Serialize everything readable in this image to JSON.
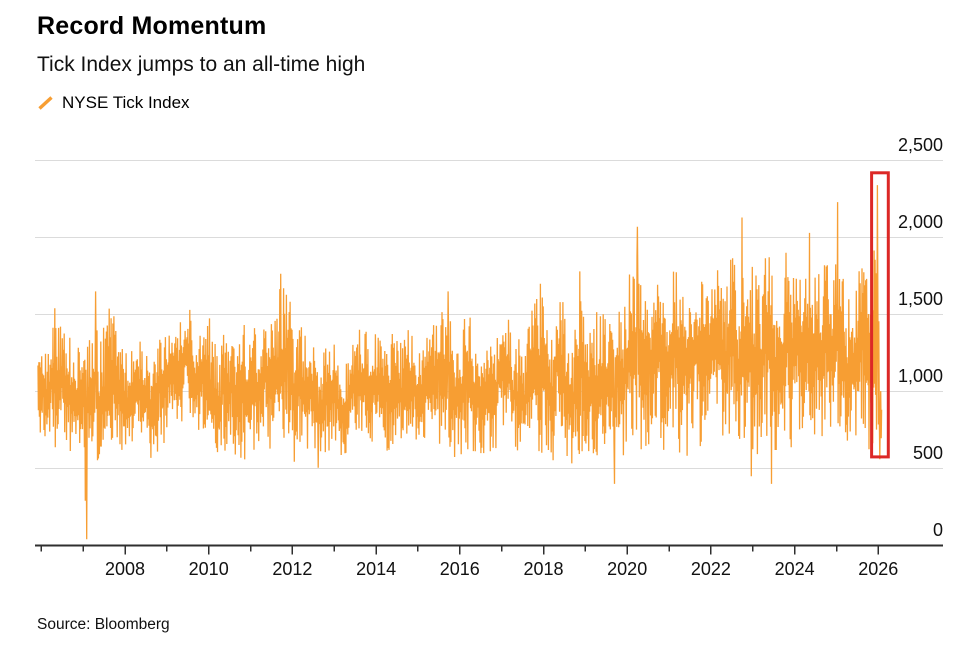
{
  "source_note": "Source: Bloomberg",
  "chart_data": {
    "type": "line",
    "title": "Record Momentum",
    "subtitle": "Tick Index jumps to an all-time high",
    "series": [
      {
        "name": "NYSE Tick Index",
        "color": "#F79E33"
      }
    ],
    "colors": {
      "line": "#F79E33",
      "grid": "#DBDBDB",
      "axis": "#2F2F2F",
      "text": "#111111",
      "highlight": "#DC2826",
      "background": "#FFFFFF"
    },
    "x_axis": {
      "range_years": [
        2005.8,
        2026.8
      ],
      "tick_years": [
        2006,
        2007,
        2008,
        2009,
        2010,
        2011,
        2012,
        2013,
        2014,
        2015,
        2016,
        2017,
        2018,
        2019,
        2020,
        2021,
        2022,
        2023,
        2024,
        2025,
        2026
      ],
      "labels": [
        {
          "year": 2008,
          "text": "2008"
        },
        {
          "year": 2010,
          "text": "2010"
        },
        {
          "year": 2012,
          "text": "2012"
        },
        {
          "year": 2014,
          "text": "2014"
        },
        {
          "year": 2016,
          "text": "2016"
        },
        {
          "year": 2018,
          "text": "2018"
        },
        {
          "year": 2020,
          "text": "2020"
        },
        {
          "year": 2022,
          "text": "2022"
        },
        {
          "year": 2024,
          "text": "2024"
        },
        {
          "year": 2026,
          "text": "2026"
        }
      ]
    },
    "y_axis": {
      "range": [
        0,
        2500
      ],
      "side": "right",
      "grid": true,
      "ticks": [
        {
          "value": 0,
          "label": "0"
        },
        {
          "value": 500,
          "label": "500"
        },
        {
          "value": 1000,
          "label": "1,000"
        },
        {
          "value": 1500,
          "label": "1,500"
        },
        {
          "value": 2000,
          "label": "2,000"
        },
        {
          "value": 2500,
          "label": "2,500"
        }
      ]
    },
    "series_data": {
      "description": "Dense daily NYSE Tick Index series, estimated as an envelope of [year, low, high] bands plus notable spike extremes [year, value] read from the plot.",
      "start_year": 2005.92,
      "end_year": 2026.08,
      "envelope": [
        [
          2005.92,
          680,
          1380
        ],
        [
          2006.3,
          640,
          1480
        ],
        [
          2006.9,
          600,
          1380
        ],
        [
          2007.1,
          520,
          1310
        ],
        [
          2007.35,
          540,
          1610
        ],
        [
          2007.7,
          560,
          1520
        ],
        [
          2008.1,
          600,
          1350
        ],
        [
          2008.6,
          560,
          1300
        ],
        [
          2009.1,
          640,
          1430
        ],
        [
          2009.6,
          680,
          1500
        ],
        [
          2010.1,
          600,
          1470
        ],
        [
          2010.45,
          620,
          1510
        ],
        [
          2010.9,
          550,
          1480
        ],
        [
          2011.3,
          600,
          1390
        ],
        [
          2011.75,
          520,
          1700
        ],
        [
          2012.1,
          540,
          1490
        ],
        [
          2012.45,
          660,
          1440
        ],
        [
          2012.7,
          520,
          1380
        ],
        [
          2013.1,
          580,
          1320
        ],
        [
          2013.6,
          640,
          1400
        ],
        [
          2014.1,
          600,
          1460
        ],
        [
          2014.6,
          650,
          1480
        ],
        [
          2015.1,
          600,
          1400
        ],
        [
          2015.75,
          560,
          1620
        ],
        [
          2016.1,
          600,
          1600
        ],
        [
          2016.6,
          600,
          1400
        ],
        [
          2017.1,
          640,
          1470
        ],
        [
          2017.6,
          600,
          1440
        ],
        [
          2017.95,
          500,
          1680
        ],
        [
          2018.4,
          550,
          1580
        ],
        [
          2018.9,
          520,
          1730
        ],
        [
          2019.15,
          560,
          1700
        ],
        [
          2019.55,
          470,
          1490
        ],
        [
          2019.95,
          600,
          1680
        ],
        [
          2020.25,
          620,
          1960
        ],
        [
          2020.7,
          650,
          1780
        ],
        [
          2021.05,
          570,
          1840
        ],
        [
          2021.4,
          540,
          1680
        ],
        [
          2021.85,
          650,
          1780
        ],
        [
          2022.25,
          700,
          1820
        ],
        [
          2022.75,
          640,
          2010
        ],
        [
          2023.05,
          540,
          1890
        ],
        [
          2023.5,
          620,
          1870
        ],
        [
          2023.85,
          620,
          1950
        ],
        [
          2024.15,
          700,
          1900
        ],
        [
          2024.6,
          700,
          1860
        ],
        [
          2025.05,
          660,
          1990
        ],
        [
          2025.45,
          700,
          1800
        ],
        [
          2025.8,
          620,
          1880
        ],
        [
          2026.0,
          620,
          1950
        ],
        [
          2026.08,
          640,
          900
        ]
      ],
      "extremes": [
        [
          2006.32,
          1540
        ],
        [
          2007.05,
          290
        ],
        [
          2007.08,
          40
        ],
        [
          2007.3,
          1650
        ],
        [
          2009.55,
          1530
        ],
        [
          2011.72,
          1765
        ],
        [
          2012.62,
          505
        ],
        [
          2015.72,
          1650
        ],
        [
          2017.93,
          1700
        ],
        [
          2018.87,
          1780
        ],
        [
          2019.7,
          400
        ],
        [
          2020.25,
          2070
        ],
        [
          2022.74,
          2130
        ],
        [
          2022.97,
          450
        ],
        [
          2023.45,
          400
        ],
        [
          2024.35,
          2030
        ],
        [
          2025.03,
          2230
        ],
        [
          2025.98,
          2340
        ],
        [
          2026.04,
          560
        ]
      ]
    },
    "highlight_box": {
      "year_start": 2025.84,
      "year_end": 2026.24,
      "value_top": 2420,
      "value_bottom": 575
    },
    "all_time_high": {
      "year": 2026,
      "value_approx": 2340
    }
  }
}
